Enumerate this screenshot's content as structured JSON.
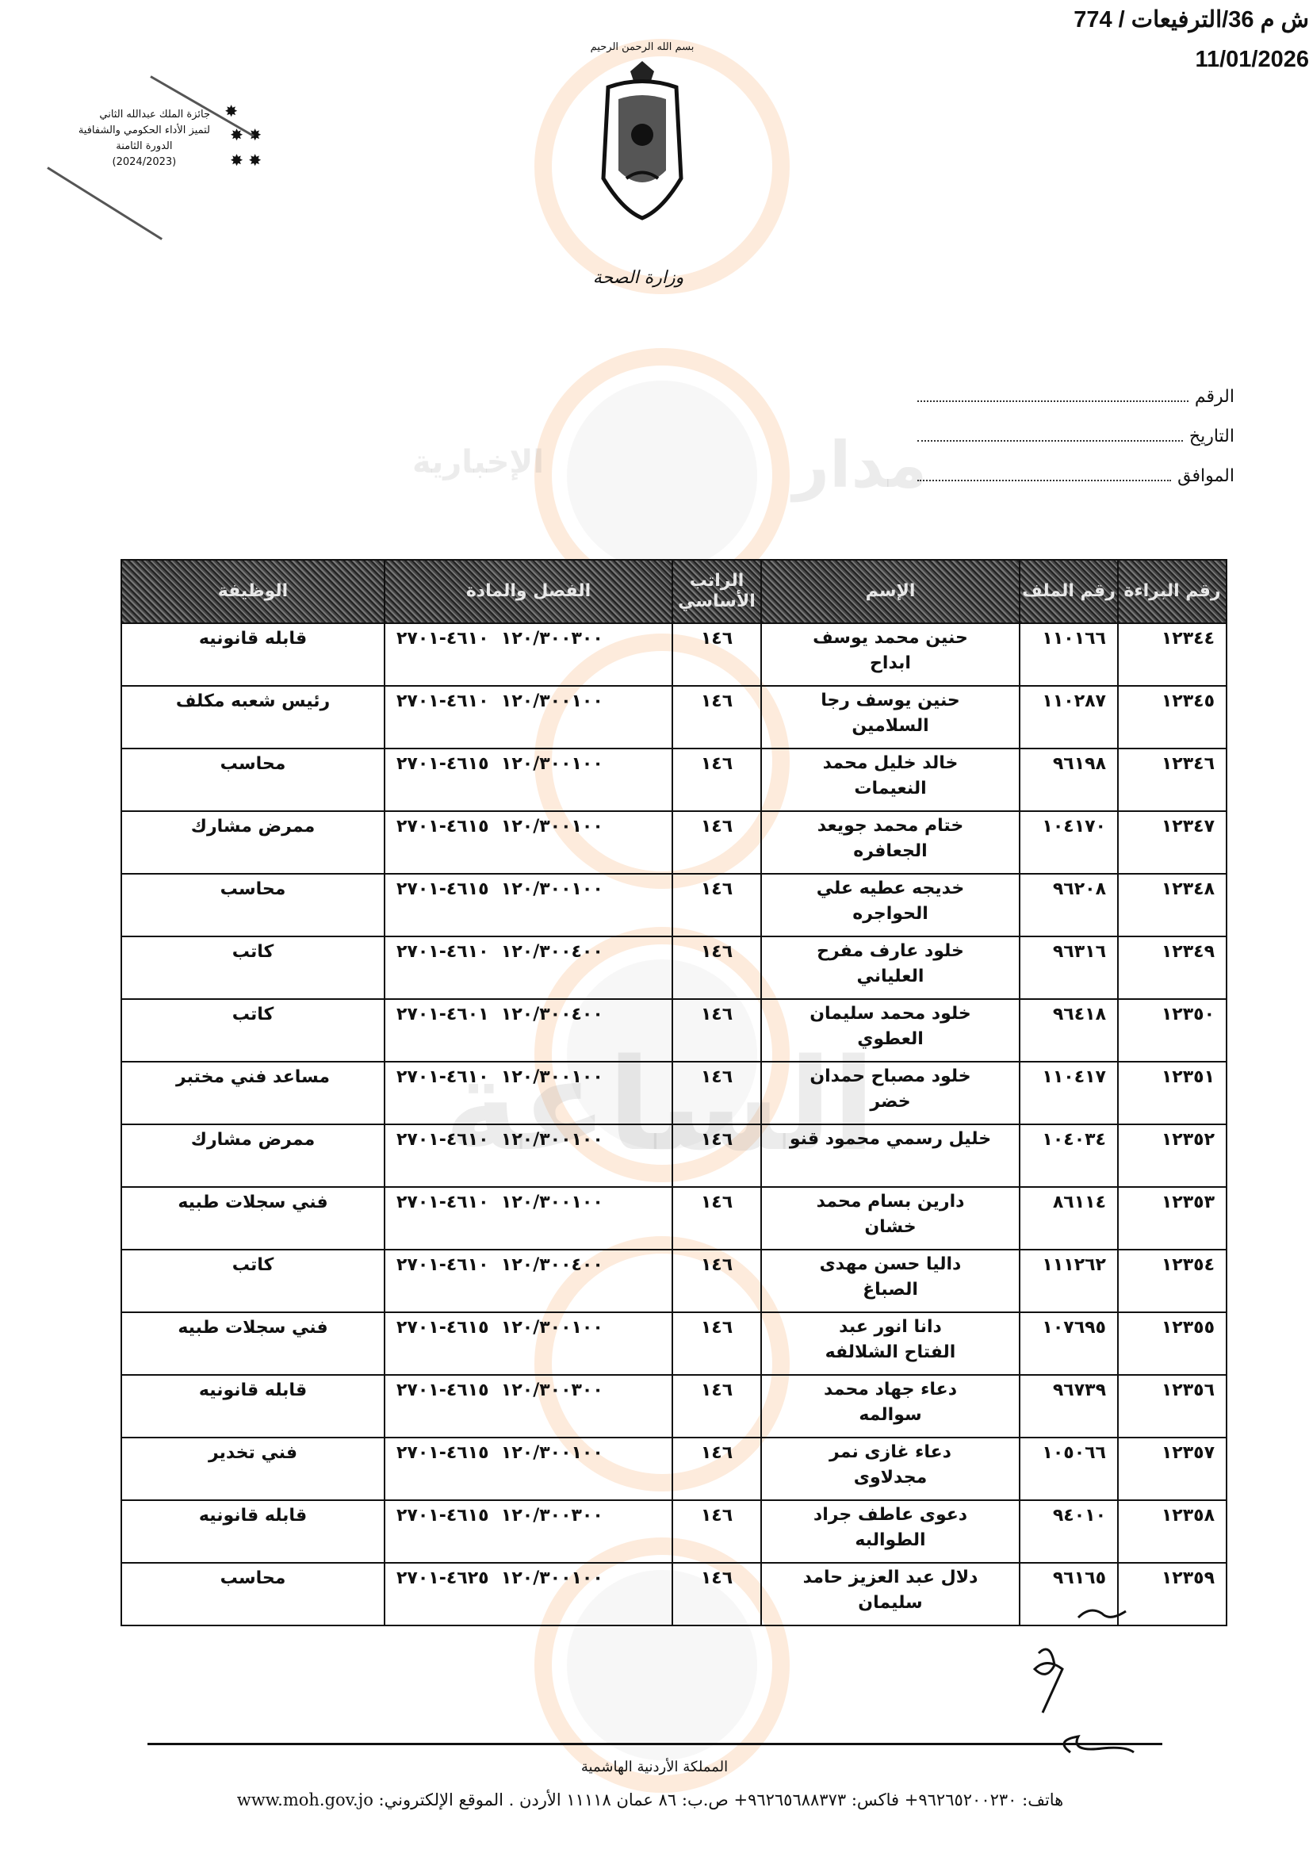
{
  "watermark": {
    "text_1": "مدار",
    "text_2": "الساعة",
    "text_3": "الإخبارية",
    "accent": "#f4a460"
  },
  "award": {
    "line1": "جائزة الملك عبدالله الثاني",
    "line2": "لتميز الأداء الحكومي والشفافية",
    "line3": "الدورة الثامنة",
    "line4": "(2024/2023)"
  },
  "logo": {
    "basmala": "بسم الله الرحمن الرحيم",
    "ministry": "وزارة الصحة"
  },
  "reference": {
    "number": "ش م 36/الترفيعات / 774",
    "date": "11/01/2026"
  },
  "fields": [
    {
      "label": "الرقم"
    },
    {
      "label": "التاريخ"
    },
    {
      "label": "الموافق"
    }
  ],
  "table": {
    "headers": [
      "رقم البراءة",
      "رقم الملف",
      "الإسم",
      "الراتب الأساسي",
      "الفصل والمادة",
      "الوظيفة"
    ],
    "rows": [
      {
        "cert": "١٢٣٤٤",
        "file": "١١٠١٦٦",
        "name1": "حنين محمد يوسف",
        "name2": "ابداح",
        "salary": "١٤٦",
        "chapter": "١٢٠/٣٠٠٣٠٠  ٤٦١٠-٢٧٠١",
        "job": "قابله قانونيه"
      },
      {
        "cert": "١٢٣٤٥",
        "file": "١١٠٢٨٧",
        "name1": "حنين يوسف رجا",
        "name2": "السلامين",
        "salary": "١٤٦",
        "chapter": "١٢٠/٣٠٠١٠٠  ٤٦١٠-٢٧٠١",
        "job": "رئيس شعبه مكلف"
      },
      {
        "cert": "١٢٣٤٦",
        "file": "٩٦١٩٨",
        "name1": "خالد خليل محمد",
        "name2": "النعيمات",
        "salary": "١٤٦",
        "chapter": "١٢٠/٣٠٠١٠٠  ٤٦١٥-٢٧٠١",
        "job": "محاسب"
      },
      {
        "cert": "١٢٣٤٧",
        "file": "١٠٤١٧٠",
        "name1": "ختام محمد جويعد",
        "name2": "الجعافره",
        "salary": "١٤٦",
        "chapter": "١٢٠/٣٠٠١٠٠  ٤٦١٥-٢٧٠١",
        "job": "ممرض مشارك"
      },
      {
        "cert": "١٢٣٤٨",
        "file": "٩٦٢٠٨",
        "name1": "خديجه عطيه علي",
        "name2": "الحواجره",
        "salary": "١٤٦",
        "chapter": "١٢٠/٣٠٠١٠٠  ٤٦١٥-٢٧٠١",
        "job": "محاسب"
      },
      {
        "cert": "١٢٣٤٩",
        "file": "٩٦٣١٦",
        "name1": "خلود عارف مفرح",
        "name2": "العلياني",
        "salary": "١٤٦",
        "chapter": "١٢٠/٣٠٠٤٠٠  ٤٦١٠-٢٧٠١",
        "job": "كاتب"
      },
      {
        "cert": "١٢٣٥٠",
        "file": "٩٦٤١٨",
        "name1": "خلود محمد سليمان",
        "name2": "العطوي",
        "salary": "١٤٦",
        "chapter": "١٢٠/٣٠٠٤٠٠  ٤٦٠١-٢٧٠١",
        "job": "كاتب"
      },
      {
        "cert": "١٢٣٥١",
        "file": "١١٠٤١٧",
        "name1": "خلود مصباح حمدان",
        "name2": "خضر",
        "salary": "١٤٦",
        "chapter": "١٢٠/٣٠٠١٠٠  ٤٦١٠-٢٧٠١",
        "job": "مساعد فني مختبر"
      },
      {
        "cert": "١٢٣٥٢",
        "file": "١٠٤٠٣٤",
        "name1": "خليل رسمي محمود قنو",
        "name2": "",
        "salary": "١٤٦",
        "chapter": "١٢٠/٣٠٠١٠٠  ٤٦١٠-٢٧٠١",
        "job": "ممرض مشارك"
      },
      {
        "cert": "١٢٣٥٣",
        "file": "٨٦١١٤",
        "name1": "دارين بسام محمد",
        "name2": "خشان",
        "salary": "١٤٦",
        "chapter": "١٢٠/٣٠٠١٠٠  ٤٦١٠-٢٧٠١",
        "job": "فني سجلات طبيه"
      },
      {
        "cert": "١٢٣٥٤",
        "file": "١١١٢٦٢",
        "name1": "داليا حسن مهدى",
        "name2": "الصباغ",
        "salary": "١٤٦",
        "chapter": "١٢٠/٣٠٠٤٠٠  ٤٦١٠-٢٧٠١",
        "job": "كاتب"
      },
      {
        "cert": "١٢٣٥٥",
        "file": "١٠٧٦٩٥",
        "name1": "دانا انور عبد",
        "name2": "الفتاح الشلالفه",
        "salary": "١٤٦",
        "chapter": "١٢٠/٣٠٠١٠٠  ٤٦١٥-٢٧٠١",
        "job": "فني سجلات طبيه"
      },
      {
        "cert": "١٢٣٥٦",
        "file": "٩٦٧٣٩",
        "name1": "دعاء جهاد محمد",
        "name2": "سوالمه",
        "salary": "١٤٦",
        "chapter": "١٢٠/٣٠٠٣٠٠  ٤٦١٥-٢٧٠١",
        "job": "قابله قانونيه"
      },
      {
        "cert": "١٢٣٥٧",
        "file": "١٠٥٠٦٦",
        "name1": "دعاء غازى نمر",
        "name2": "مجدلاوى",
        "salary": "١٤٦",
        "chapter": "١٢٠/٣٠٠١٠٠  ٤٦١٥-٢٧٠١",
        "job": "فني تخدير"
      },
      {
        "cert": "١٢٣٥٨",
        "file": "٩٤٠١٠",
        "name1": "دعوى عاطف جراد",
        "name2": "الطوالبه",
        "salary": "١٤٦",
        "chapter": "١٢٠/٣٠٠٣٠٠  ٤٦١٥-٢٧٠١",
        "job": "قابله قانونيه"
      },
      {
        "cert": "١٢٣٥٩",
        "file": "٩٦١٦٥",
        "name1": "دلال عبد العزيز حامد",
        "name2": "سليمان",
        "salary": "١٤٦",
        "chapter": "١٢٠/٣٠٠١٠٠  ٤٦٢٥-٢٧٠١",
        "job": "محاسب"
      }
    ]
  },
  "footer": {
    "country": "المملكة الأردنية الهاشمية",
    "contact": "هاتف: ٩٦٢٦٥٢٠٠٢٣٠+  فاكس: ٩٦٢٦٥٦٨٨٣٧٣+  ص.ب: ٨٦ عمان ١١١١٨ الأردن . الموقع الإلكتروني: www.moh.gov.jo"
  }
}
